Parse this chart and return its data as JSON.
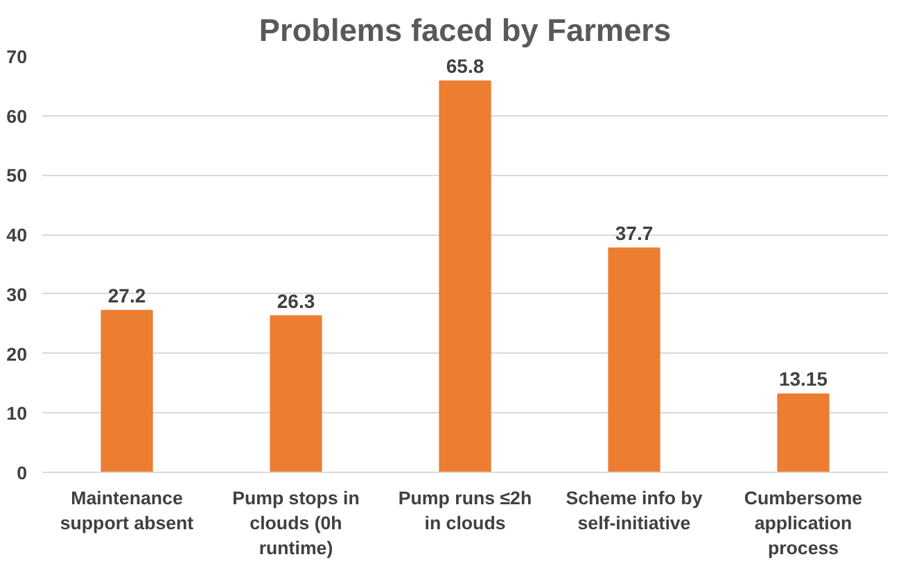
{
  "chart_data": {
    "type": "bar",
    "title": "Problems faced by Farmers",
    "categories": [
      "Maintenance support absent",
      "Pump stops in clouds (0h runtime)",
      "Pump runs ≤2h in clouds",
      "Scheme info by self-initiative",
      "Cumbersome application process"
    ],
    "values": [
      27.2,
      26.3,
      65.8,
      37.7,
      13.15
    ],
    "color": "#ed7d31",
    "ylim": [
      0,
      70
    ],
    "yticks": [
      0,
      10,
      20,
      30,
      40,
      50,
      60,
      70
    ],
    "grid": "y",
    "data_labels": true
  }
}
